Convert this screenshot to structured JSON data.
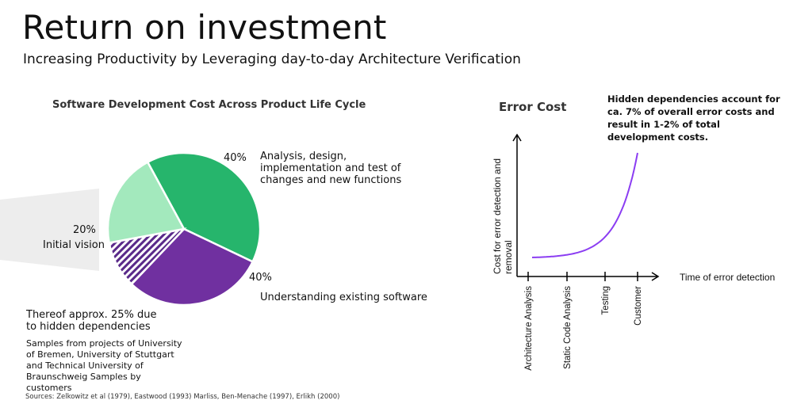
{
  "slide": {
    "title": "Return on investment",
    "subtitle": "Increasing Productivity by Leveraging day-to-day Architecture Verification",
    "sources": "Sources: Zelkowitz et al (1979), Eastwood (1993) Marliss, Ben-Menache (1997), Erlikh (2000)"
  },
  "chart_data": [
    {
      "type": "pie",
      "title": "Software Development Cost Across Product Life Cycle",
      "slices": [
        {
          "label": "Analysis, design, implementation and test of changes and new functions",
          "value": 40,
          "value_label": "40%",
          "color": "#26b56c"
        },
        {
          "label": "Understanding existing software",
          "value": 40,
          "value_label": "40%",
          "color": "#7030a0",
          "hatched_fraction": 0.25,
          "hatch_label": "Thereof approx. 25% due to hidden dependencies"
        },
        {
          "label": "Initial vision",
          "value": 20,
          "value_label": "20%",
          "color": "#a3e9bd"
        }
      ],
      "note": "Samples from projects of University of Bremen, University of Stuttgart and Technical University of Braunschweig Samples by customers"
    },
    {
      "type": "line",
      "title": "Error Cost",
      "xlabel": "Time of error detection",
      "ylabel": "Cost for error detection and removal",
      "categories": [
        "Architecture Analysis",
        "Static Code Analysis",
        "Testing",
        "Customer"
      ],
      "shape": "exponential",
      "series_color": "#8b3df2",
      "annotation": "Hidden dependencies account for ca. 7% of overall error costs and result in 1-2% of total development costs."
    }
  ]
}
